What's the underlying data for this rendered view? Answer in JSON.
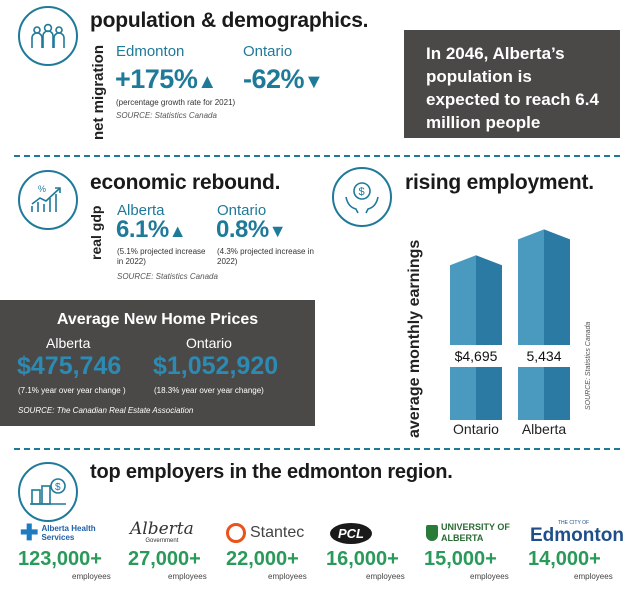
{
  "population": {
    "title": "population & demographics.",
    "side_label": "net migration",
    "edmonton": {
      "label": "Edmonton",
      "value": "+175%",
      "direction": "up"
    },
    "ontario": {
      "label": "Ontario",
      "value": "-62%",
      "direction": "down"
    },
    "note": "(percentage growth rate for 2021)",
    "source": "SOURCE: Statistics Canada",
    "callout": "In 2046, Alberta’s population is expected to reach 6.4 million people",
    "icon": "people-group-icon"
  },
  "economy": {
    "title": "economic rebound.",
    "side_label": "real gdp",
    "alberta": {
      "label": "Alberta",
      "value": "6.1%",
      "direction": "up",
      "note": "(5.1% projected increase in 2022)"
    },
    "ontario": {
      "label": "Ontario",
      "value": "0.8%",
      "direction": "down",
      "note": "(4.3% projected increase in 2022)"
    },
    "source": "SOURCE: Statistics Canada",
    "icon": "growth-chart-icon"
  },
  "home_prices": {
    "title": "Average New Home Prices",
    "alberta": {
      "label": "Alberta",
      "value": "$475,746",
      "note": "(7.1% year over year change )"
    },
    "ontario": {
      "label": "Ontario",
      "value": "$1,052,920",
      "note": "(18.3% year over year change)"
    },
    "source": "SOURCE: The Canadian Real Estate Association"
  },
  "employment": {
    "title": "rising employment.",
    "icon": "hands-dollar-icon",
    "source": "SOURCE: Statistics Canada",
    "chart_data": {
      "type": "bar",
      "ylabel": "average monthly earnings",
      "categories": [
        "Ontario",
        "Alberta"
      ],
      "values": [
        4695,
        5434
      ],
      "value_labels": [
        "$4,695",
        "5,434"
      ]
    }
  },
  "employers": {
    "title": "top employers in the edmonton region.",
    "icon": "buildings-money-icon",
    "items": [
      {
        "logo": "Alberta Health Services",
        "count": "123,000+",
        "unit": "employees"
      },
      {
        "logo": "Alberta",
        "logo_sub": "Government",
        "count": "27,000+",
        "unit": "employees"
      },
      {
        "logo": "Stantec",
        "count": "22,000+",
        "unit": "employees"
      },
      {
        "logo": "PCL",
        "count": "16,000+",
        "unit": "employees"
      },
      {
        "logo": "UNIVERSITY OF ALBERTA",
        "count": "15,000+",
        "unit": "employees"
      },
      {
        "logo": "Edmonton",
        "logo_small": "THE CITY OF",
        "count": "14,000+",
        "unit": "employees"
      }
    ]
  },
  "colors": {
    "teal": "#1f7a99",
    "dark": "#4a4948",
    "green": "#2a9a5a",
    "bar": "#3c8cb0"
  }
}
